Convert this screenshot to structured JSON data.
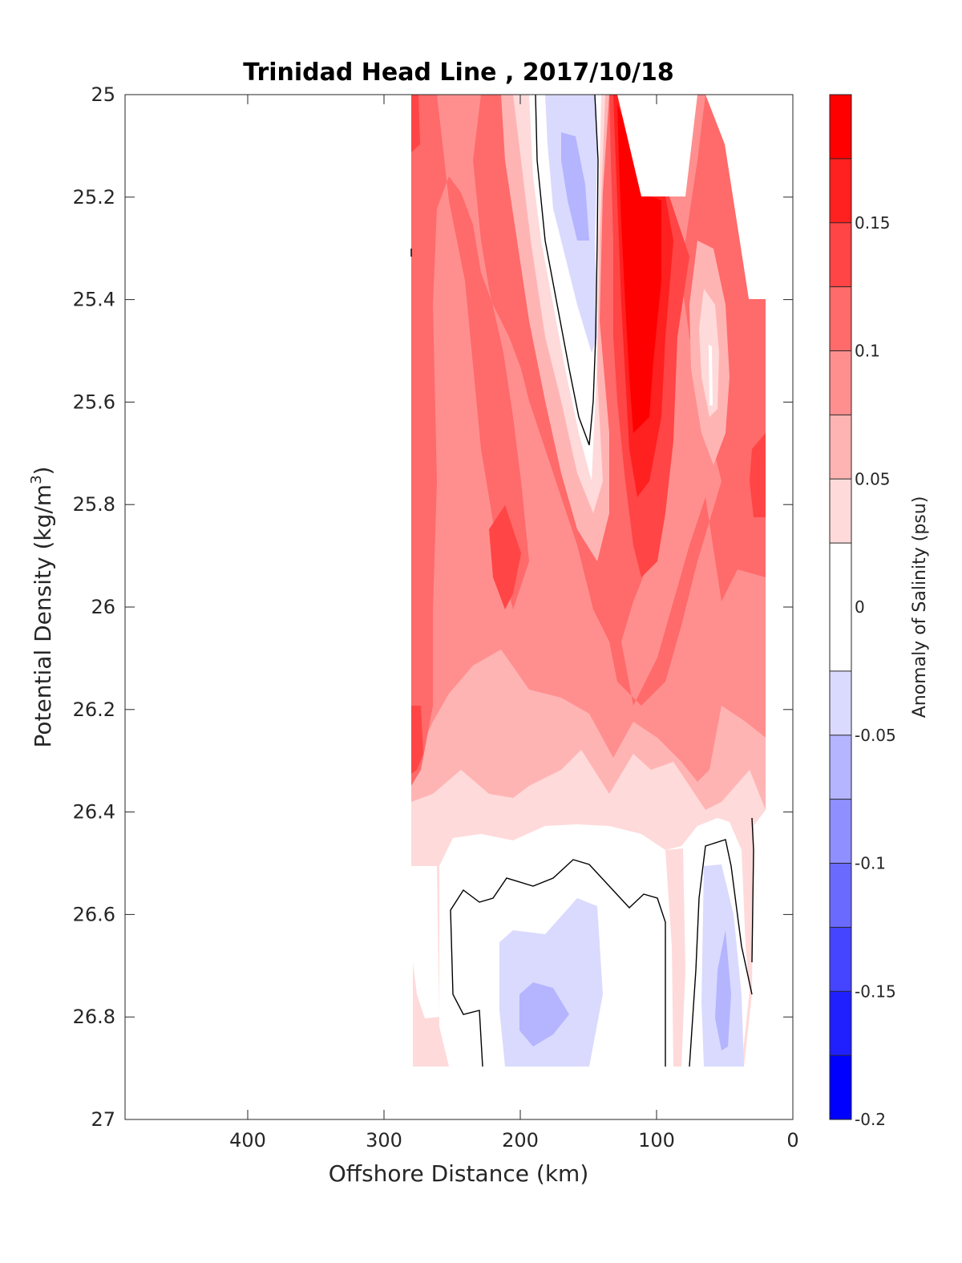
{
  "chart_data": {
    "type": "contourf",
    "title": "Trinidad Head Line , 2017/10/18",
    "xlabel": "Offshore Distance (km)",
    "ylabel": "Potential Density (kg/m",
    "ylabel_sup": "3",
    "ylabel_close": ")",
    "xlim": [
      490,
      0
    ],
    "ylim": [
      25,
      27
    ],
    "y_reversed": true,
    "x_ticks": [
      400,
      300,
      200,
      100,
      0
    ],
    "x_tick_labels": [
      "400",
      "300",
      "200",
      "100",
      "0"
    ],
    "y_ticks": [
      25,
      25.2,
      25.4,
      25.6,
      25.8,
      26,
      26.2,
      26.4,
      26.6,
      26.8,
      27
    ],
    "y_tick_labels": [
      "25",
      "25.2",
      "25.4",
      "25.6",
      "25.8",
      "26",
      "26.2",
      "26.4",
      "26.6",
      "26.8",
      "27"
    ],
    "data_extent": {
      "x": [
        280,
        20
      ],
      "y": [
        25,
        26.9
      ]
    },
    "colorbar": {
      "label": "Anomaly of Salinity (psu)",
      "range": [
        -0.2,
        0.2
      ],
      "levels": [
        -0.2,
        -0.175,
        -0.15,
        -0.125,
        -0.1,
        -0.075,
        -0.05,
        -0.025,
        0.025,
        0.05,
        0.075,
        0.1,
        0.125,
        0.15,
        0.175,
        0.2
      ],
      "tick_values": [
        0.15,
        0.1,
        0.05,
        0,
        -0.05,
        -0.1,
        -0.15,
        -0.2
      ],
      "tick_labels": [
        "0.15",
        "0.1",
        "0.05",
        "0",
        "-0.05",
        "-0.1",
        "-0.15",
        "-0.2"
      ],
      "colors_top_to_bottom": [
        "#ff0000",
        "#ff2020",
        "#ff4545",
        "#ff6a6a",
        "#ff8f8f",
        "#ffb4b4",
        "#ffdada",
        "#ffffff",
        "#dadaff",
        "#b4b4ff",
        "#8f8fff",
        "#6a6aff",
        "#4545ff",
        "#2020ff",
        "#0000ff"
      ]
    },
    "regions_description": [
      {
        "x": [
          280,
          20
        ],
        "y": [
          25,
          26.45
        ],
        "anomaly": 0.08
      },
      {
        "x": [
          180,
          140
        ],
        "y": [
          25,
          25.7
        ],
        "anomaly": -0.03
      },
      {
        "x": [
          130,
          90
        ],
        "y": [
          25.2,
          25.8
        ],
        "anomaly": 0.17
      },
      {
        "x": [
          260,
          70
        ],
        "y": [
          26.5,
          26.9
        ],
        "anomaly": 0.0
      },
      {
        "x": [
          210,
          140
        ],
        "y": [
          26.6,
          26.9
        ],
        "anomaly": -0.04
      }
    ]
  }
}
